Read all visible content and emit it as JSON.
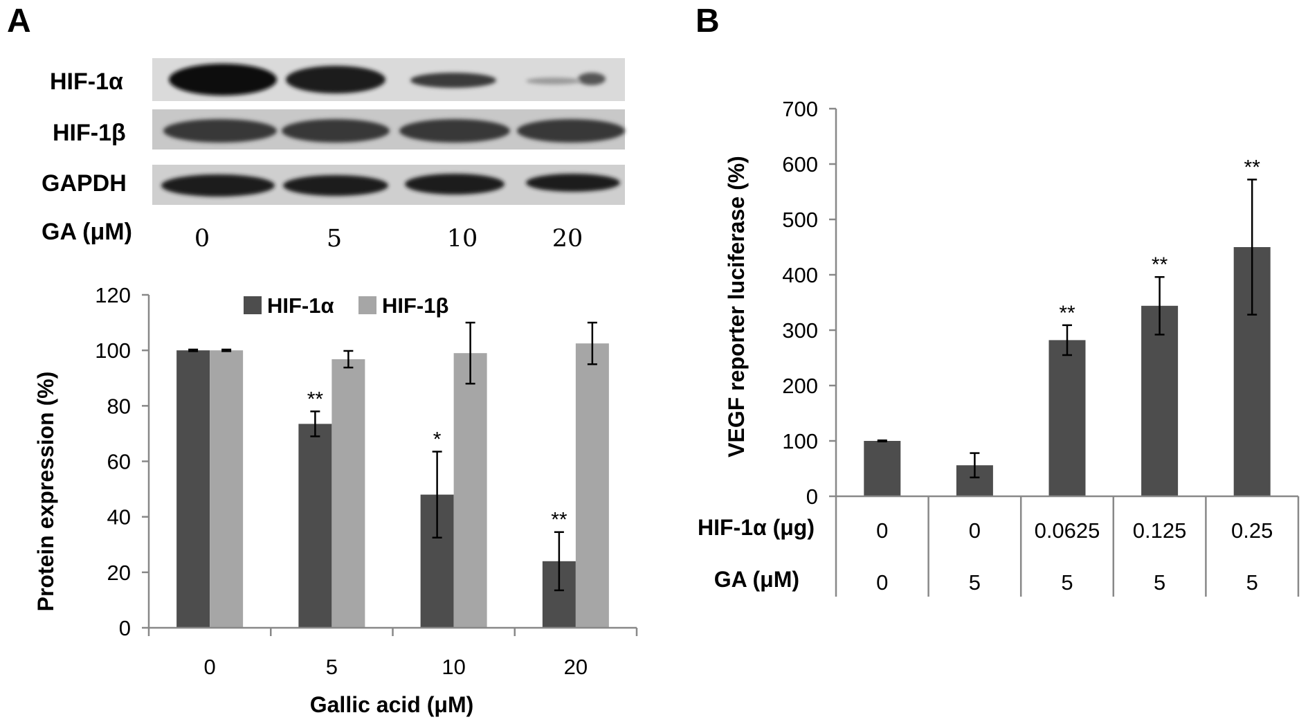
{
  "panel_a": {
    "letter": "A",
    "western_blot": {
      "rows": [
        "HIF-1α",
        "HIF-1β",
        "GAPDH"
      ],
      "lane_label": "GA (μM)",
      "lanes": [
        "0",
        "5",
        "10",
        "20"
      ]
    }
  },
  "panel_b": {
    "letter": "B"
  },
  "chart_data": [
    {
      "type": "bar",
      "panel": "A",
      "categories": [
        "0",
        "5",
        "10",
        "20"
      ],
      "series": [
        {
          "name": "HIF-1α",
          "color": "#4d4d4d",
          "values": [
            100,
            73.5,
            48,
            24
          ],
          "errors": [
            0.3,
            4.5,
            15.5,
            10.5
          ],
          "significance": [
            "",
            "**",
            "*",
            "**"
          ]
        },
        {
          "name": "HIF-1β",
          "color": "#a6a6a6",
          "values": [
            100,
            96.8,
            99,
            102.5
          ],
          "errors": [
            0.3,
            3,
            11,
            7.5
          ],
          "significance": [
            "",
            "",
            "",
            ""
          ]
        }
      ],
      "xlabel": "Gallic acid (μM)",
      "ylabel": "Protein expression (%)",
      "ylim": [
        0,
        120
      ],
      "yticks": [
        0,
        20,
        40,
        60,
        80,
        100,
        120
      ],
      "legend": "top",
      "grid": false
    },
    {
      "type": "bar",
      "panel": "B",
      "series": [
        {
          "color": "#4d4d4d",
          "values": [
            100,
            56,
            282,
            344,
            450
          ],
          "errors": [
            1,
            22,
            27,
            52,
            122
          ],
          "significance": [
            "",
            "",
            "**",
            "**",
            "**"
          ]
        }
      ],
      "table_rows": [
        {
          "label": "HIF-1α (μg)",
          "values": [
            "0",
            "0",
            "0.0625",
            "0.125",
            "0.25"
          ]
        },
        {
          "label": "GA (μM)",
          "values": [
            "0",
            "5",
            "5",
            "5",
            "5"
          ]
        }
      ],
      "ylabel": "VEGF  reporter  luciferase (%)",
      "ylim": [
        0,
        700
      ],
      "yticks": [
        0,
        100,
        200,
        300,
        400,
        500,
        600,
        700
      ],
      "grid": false
    }
  ]
}
